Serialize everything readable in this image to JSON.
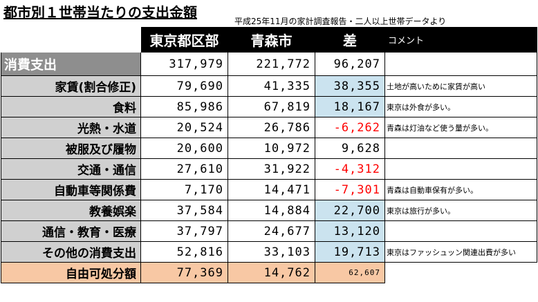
{
  "title": "都市別１世帯当たりの支出金額",
  "subtitle": "平成25年11月の家計調査報告・二人以上世帯データより",
  "headers": {
    "tokyo": "東京都区部",
    "aomori": "青森市",
    "diff": "差",
    "comment": "コメント"
  },
  "rows": [
    {
      "label": "消費支出",
      "tokyo": "317,979",
      "aomori": "221,772",
      "diff": "96,207",
      "comment": ""
    },
    {
      "label": "家賃(割合修正)",
      "tokyo": "79,690",
      "aomori": "41,335",
      "diff": "38,355",
      "comment": "土地が高いために家賃が高い"
    },
    {
      "label": "食料",
      "tokyo": "85,986",
      "aomori": "67,819",
      "diff": "18,167",
      "comment": "東京は外食が多い。"
    },
    {
      "label": "光熱・水道",
      "tokyo": "20,524",
      "aomori": "26,786",
      "diff": "-6,262",
      "comment": "青森は灯油など使う量が多い。"
    },
    {
      "label": "被服及び履物",
      "tokyo": "20,600",
      "aomori": "10,972",
      "diff": "9,628",
      "comment": ""
    },
    {
      "label": "交通・通信",
      "tokyo": "27,610",
      "aomori": "31,922",
      "diff": "-4,312",
      "comment": ""
    },
    {
      "label": "自動車等関係費",
      "tokyo": "7,170",
      "aomori": "14,471",
      "diff": "-7,301",
      "comment": "青森は自動車保有が多い。"
    },
    {
      "label": "教養娯楽",
      "tokyo": "37,584",
      "aomori": "14,884",
      "diff": "22,700",
      "comment": "東京は旅行が多い。"
    },
    {
      "label": "通信・教育・医療",
      "tokyo": "37,797",
      "aomori": "24,677",
      "diff": "13,120",
      "comment": ""
    },
    {
      "label": "その他の消費支出",
      "tokyo": "52,816",
      "aomori": "33,103",
      "diff": "19,713",
      "comment": "東京はファッシュッン関連出費が多い"
    },
    {
      "label": "自由可処分額",
      "tokyo": "77,369",
      "aomori": "14,762",
      "diff": "62,607",
      "comment": ""
    }
  ],
  "colors": {
    "label_bg": "#d0d0d0",
    "diff_highlight": "#cbe3ef",
    "negative": "#ff0000",
    "total_row": "#f8c8a4"
  }
}
